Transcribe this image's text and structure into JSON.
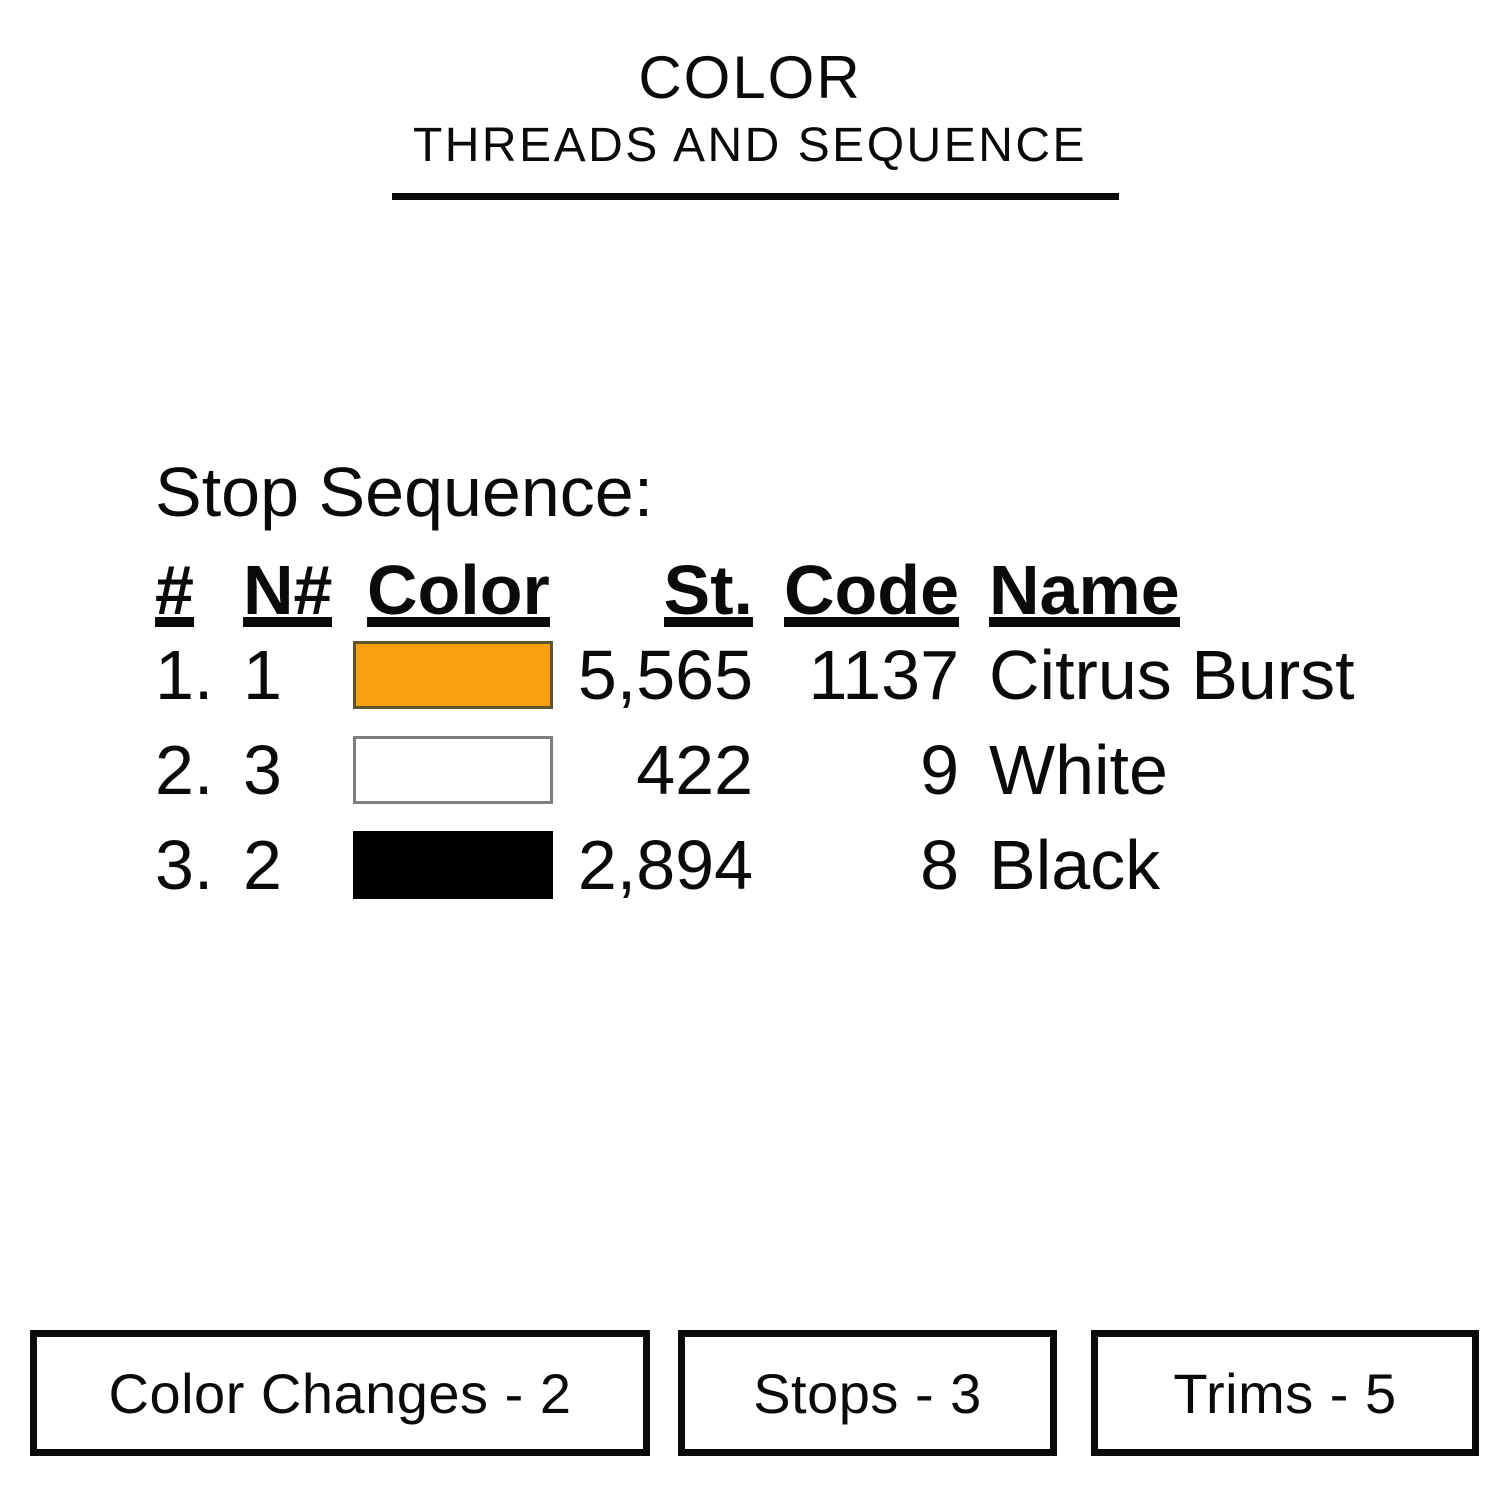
{
  "header": {
    "title": "COLOR",
    "subtitle": "THREADS AND SEQUENCE"
  },
  "table": {
    "caption": "Stop Sequence:",
    "columns": [
      "#",
      "N#",
      "Color",
      "St.",
      "Code",
      "Name"
    ],
    "rows": [
      {
        "order": "1.",
        "needle": "1",
        "swatch_color": "#F9A00F",
        "swatch_border": "#5E5430",
        "stitches": "5,565",
        "code": "1137",
        "name": "Citrus Burst"
      },
      {
        "order": "2.",
        "needle": "3",
        "swatch_color": "#FFFFFF",
        "swatch_border": "#7F7F7F",
        "stitches": "422",
        "code": "9",
        "name": "White"
      },
      {
        "order": "3.",
        "needle": "2",
        "swatch_color": "#000000",
        "swatch_border": "#000000",
        "stitches": "2,894",
        "code": "8",
        "name": "Black"
      }
    ]
  },
  "footer": {
    "stats": [
      {
        "label": "Color Changes - 2"
      },
      {
        "label": "Stops - 3"
      },
      {
        "label": "Trims - 5"
      }
    ]
  }
}
